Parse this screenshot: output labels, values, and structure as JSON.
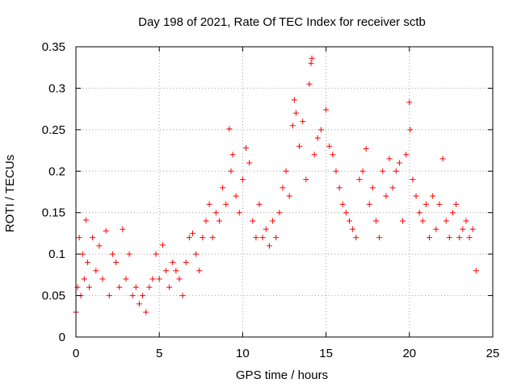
{
  "chart_data": {
    "type": "scatter",
    "title": "Day 198 of 2021, Rate Of TEC Index for receiver sctb",
    "xlabel": "GPS time / hours",
    "ylabel": "ROTI / TECUs",
    "xlim": [
      0,
      25
    ],
    "ylim": [
      0,
      0.35
    ],
    "x_ticks": [
      0,
      5,
      10,
      15,
      20,
      25
    ],
    "y_ticks": [
      0,
      0.05,
      0.1,
      0.15,
      0.2,
      0.25,
      0.3,
      0.35
    ],
    "x_tick_labels": [
      "0",
      "5",
      "10",
      "15",
      "20",
      "25"
    ],
    "y_tick_labels": [
      "0",
      "0.05",
      "0.1",
      "0.15",
      "0.2",
      "0.25",
      "0.3",
      "0.35"
    ],
    "grid": true,
    "marker": "+",
    "color": "#ff0000",
    "series": [
      {
        "name": "ROTI",
        "points": [
          [
            0.0,
            0.03
          ],
          [
            0.1,
            0.06
          ],
          [
            0.2,
            0.12
          ],
          [
            0.3,
            0.05
          ],
          [
            0.4,
            0.1
          ],
          [
            0.5,
            0.07
          ],
          [
            0.6,
            0.141
          ],
          [
            0.7,
            0.09
          ],
          [
            0.8,
            0.06
          ],
          [
            1.0,
            0.12
          ],
          [
            1.2,
            0.08
          ],
          [
            1.4,
            0.11
          ],
          [
            1.6,
            0.07
          ],
          [
            1.8,
            0.128
          ],
          [
            2.0,
            0.05
          ],
          [
            2.2,
            0.1
          ],
          [
            2.4,
            0.09
          ],
          [
            2.6,
            0.06
          ],
          [
            2.8,
            0.13
          ],
          [
            3.0,
            0.07
          ],
          [
            3.2,
            0.1
          ],
          [
            3.4,
            0.05
          ],
          [
            3.6,
            0.06
          ],
          [
            3.8,
            0.04
          ],
          [
            4.0,
            0.05
          ],
          [
            4.2,
            0.03
          ],
          [
            4.4,
            0.06
          ],
          [
            4.6,
            0.07
          ],
          [
            4.8,
            0.1
          ],
          [
            5.0,
            0.07
          ],
          [
            5.2,
            0.111
          ],
          [
            5.4,
            0.08
          ],
          [
            5.6,
            0.06
          ],
          [
            5.8,
            0.09
          ],
          [
            6.0,
            0.08
          ],
          [
            6.2,
            0.07
          ],
          [
            6.4,
            0.05
          ],
          [
            6.6,
            0.09
          ],
          [
            6.8,
            0.12
          ],
          [
            7.0,
            0.125
          ],
          [
            7.2,
            0.1
          ],
          [
            7.4,
            0.08
          ],
          [
            7.6,
            0.12
          ],
          [
            7.8,
            0.14
          ],
          [
            8.0,
            0.16
          ],
          [
            8.2,
            0.12
          ],
          [
            8.4,
            0.15
          ],
          [
            8.6,
            0.14
          ],
          [
            8.8,
            0.18
          ],
          [
            9.0,
            0.16
          ],
          [
            9.2,
            0.251
          ],
          [
            9.3,
            0.2
          ],
          [
            9.4,
            0.22
          ],
          [
            9.6,
            0.17
          ],
          [
            9.8,
            0.15
          ],
          [
            10.0,
            0.19
          ],
          [
            10.2,
            0.228
          ],
          [
            10.4,
            0.21
          ],
          [
            10.6,
            0.14
          ],
          [
            10.8,
            0.12
          ],
          [
            11.0,
            0.16
          ],
          [
            11.2,
            0.12
          ],
          [
            11.4,
            0.13
          ],
          [
            11.6,
            0.11
          ],
          [
            11.8,
            0.14
          ],
          [
            12.0,
            0.12
          ],
          [
            12.2,
            0.15
          ],
          [
            12.4,
            0.18
          ],
          [
            12.6,
            0.2
          ],
          [
            12.8,
            0.17
          ],
          [
            13.0,
            0.255
          ],
          [
            13.1,
            0.286
          ],
          [
            13.2,
            0.27
          ],
          [
            13.4,
            0.23
          ],
          [
            13.6,
            0.26
          ],
          [
            13.8,
            0.19
          ],
          [
            14.0,
            0.305
          ],
          [
            14.1,
            0.33
          ],
          [
            14.15,
            0.336
          ],
          [
            14.3,
            0.22
          ],
          [
            14.5,
            0.24
          ],
          [
            14.7,
            0.25
          ],
          [
            15.0,
            0.274
          ],
          [
            15.2,
            0.23
          ],
          [
            15.4,
            0.22
          ],
          [
            15.6,
            0.2
          ],
          [
            15.8,
            0.18
          ],
          [
            16.0,
            0.16
          ],
          [
            16.2,
            0.15
          ],
          [
            16.4,
            0.14
          ],
          [
            16.6,
            0.13
          ],
          [
            16.8,
            0.12
          ],
          [
            17.0,
            0.19
          ],
          [
            17.2,
            0.2
          ],
          [
            17.4,
            0.227
          ],
          [
            17.6,
            0.16
          ],
          [
            17.8,
            0.18
          ],
          [
            18.0,
            0.14
          ],
          [
            18.2,
            0.12
          ],
          [
            18.4,
            0.2
          ],
          [
            18.6,
            0.17
          ],
          [
            18.8,
            0.215
          ],
          [
            19.0,
            0.18
          ],
          [
            19.2,
            0.2
          ],
          [
            19.4,
            0.21
          ],
          [
            19.6,
            0.14
          ],
          [
            19.8,
            0.22
          ],
          [
            20.0,
            0.283
          ],
          [
            20.05,
            0.25
          ],
          [
            20.2,
            0.19
          ],
          [
            20.4,
            0.17
          ],
          [
            20.6,
            0.15
          ],
          [
            20.8,
            0.14
          ],
          [
            21.0,
            0.16
          ],
          [
            21.2,
            0.12
          ],
          [
            21.4,
            0.17
          ],
          [
            21.6,
            0.13
          ],
          [
            21.8,
            0.16
          ],
          [
            22.0,
            0.215
          ],
          [
            22.2,
            0.14
          ],
          [
            22.4,
            0.12
          ],
          [
            22.6,
            0.15
          ],
          [
            22.8,
            0.16
          ],
          [
            23.0,
            0.12
          ],
          [
            23.2,
            0.13
          ],
          [
            23.4,
            0.14
          ],
          [
            23.6,
            0.12
          ],
          [
            23.8,
            0.13
          ],
          [
            24.0,
            0.08
          ]
        ]
      }
    ]
  }
}
